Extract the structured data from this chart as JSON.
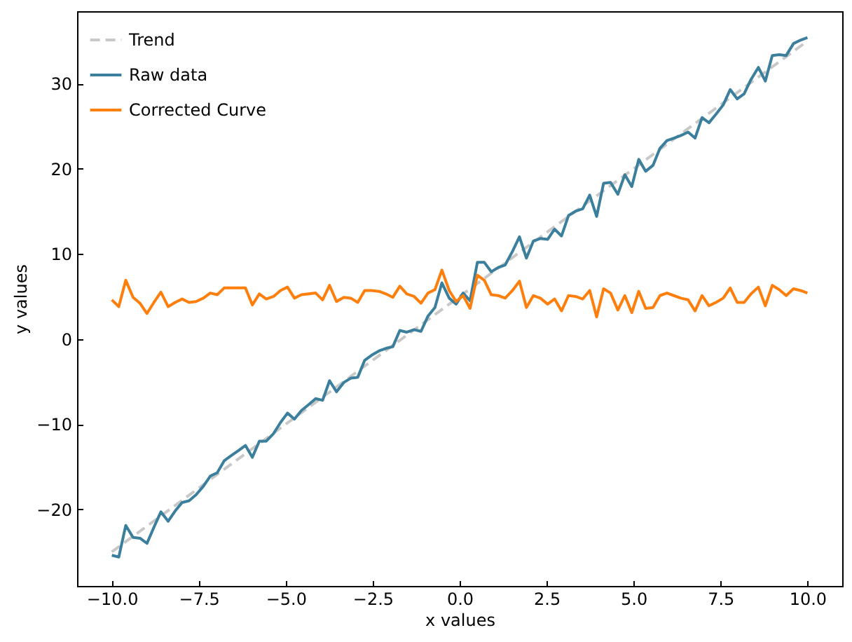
{
  "chart_data": {
    "type": "line",
    "xlabel": "x values",
    "ylabel": "y values",
    "xlim": [
      -11,
      11
    ],
    "ylim": [
      -29,
      38.5
    ],
    "xticks": [
      {
        "value": -10,
        "label": "−10.0"
      },
      {
        "value": -7.5,
        "label": "−7.5"
      },
      {
        "value": -5,
        "label": "−5.0"
      },
      {
        "value": -2.5,
        "label": "−2.5"
      },
      {
        "value": 0,
        "label": "0.0"
      },
      {
        "value": 2.5,
        "label": "2.5"
      },
      {
        "value": 5,
        "label": "5.0"
      },
      {
        "value": 7.5,
        "label": "7.5"
      },
      {
        "value": 10,
        "label": "10.0"
      }
    ],
    "yticks": [
      {
        "value": -20,
        "label": "−20"
      },
      {
        "value": -10,
        "label": "−10"
      },
      0,
      10,
      20,
      30
    ],
    "grid": false,
    "legend": "top left",
    "x": [
      -10,
      -9.8,
      -9.6,
      -9.39,
      -9.19,
      -8.99,
      -8.79,
      -8.59,
      -8.38,
      -8.18,
      -7.98,
      -7.78,
      -7.58,
      -7.37,
      -7.17,
      -6.97,
      -6.77,
      -6.57,
      -6.36,
      -6.16,
      -5.96,
      -5.76,
      -5.56,
      -5.35,
      -5.15,
      -4.95,
      -4.75,
      -4.55,
      -4.34,
      -4.14,
      -3.94,
      -3.74,
      -3.54,
      -3.33,
      -3.13,
      -2.93,
      -2.73,
      -2.53,
      -2.32,
      -2.12,
      -1.92,
      -1.72,
      -1.52,
      -1.31,
      -1.11,
      -0.91,
      -0.71,
      -0.51,
      -0.3,
      -0.1,
      0.1,
      0.3,
      0.51,
      0.71,
      0.91,
      1.11,
      1.31,
      1.52,
      1.72,
      1.92,
      2.12,
      2.32,
      2.53,
      2.73,
      2.93,
      3.13,
      3.33,
      3.54,
      3.74,
      3.94,
      4.14,
      4.34,
      4.55,
      4.75,
      4.95,
      5.15,
      5.35,
      5.56,
      5.76,
      5.96,
      6.16,
      6.36,
      6.57,
      6.77,
      6.97,
      7.17,
      7.37,
      7.58,
      7.78,
      7.98,
      8.18,
      8.38,
      8.59,
      8.79,
      8.99,
      9.19,
      9.39,
      9.6,
      9.8,
      10
    ],
    "series": [
      {
        "name": "Trend",
        "color": "#c8c8c8",
        "line_style": "dashed",
        "x": [
          -10,
          10
        ],
        "values": [
          -25,
          35
        ]
      },
      {
        "name": "Raw data",
        "color": "#3b7f9d",
        "line_style": "solid",
        "values": [
          -25.4,
          -25.6,
          -21.9,
          -23.3,
          -23.4,
          -24.0,
          -22.1,
          -20.3,
          -21.4,
          -20.2,
          -19.2,
          -19.0,
          -18.3,
          -17.3,
          -16.1,
          -15.7,
          -14.3,
          -13.7,
          -13.1,
          -12.5,
          -13.9,
          -12.0,
          -12.0,
          -11.1,
          -9.8,
          -8.7,
          -9.4,
          -8.4,
          -7.7,
          -7.0,
          -7.2,
          -4.9,
          -6.2,
          -5.1,
          -4.6,
          -4.5,
          -2.5,
          -1.9,
          -1.4,
          -1.1,
          -0.9,
          1.0,
          0.8,
          1.1,
          0.9,
          2.7,
          3.7,
          6.6,
          4.8,
          4.1,
          5.4,
          4.5,
          9.0,
          9.0,
          7.9,
          8.4,
          8.7,
          10.3,
          12.0,
          9.5,
          11.5,
          11.8,
          11.7,
          12.9,
          12.1,
          14.5,
          15.0,
          15.3,
          16.9,
          14.4,
          18.3,
          18.4,
          17.0,
          19.3,
          17.9,
          21.1,
          19.7,
          20.4,
          22.4,
          23.3,
          23.6,
          23.9,
          24.3,
          23.6,
          26.0,
          25.4,
          26.4,
          27.5,
          29.3,
          28.2,
          28.8,
          30.5,
          31.9,
          30.3,
          33.3,
          33.4,
          33.3,
          34.7,
          35.1,
          35.4
        ]
      },
      {
        "name": "Corrected Curve",
        "color": "#ff7f0e",
        "line_style": "solid",
        "values": [
          4.6,
          3.8,
          6.9,
          4.9,
          4.2,
          3.0,
          4.3,
          5.5,
          3.8,
          4.3,
          4.7,
          4.3,
          4.4,
          4.8,
          5.4,
          5.2,
          6.0,
          6.0,
          6.0,
          6.0,
          4.0,
          5.3,
          4.7,
          5.0,
          5.7,
          6.1,
          4.8,
          5.2,
          5.3,
          5.4,
          4.6,
          6.3,
          4.4,
          4.9,
          4.8,
          4.3,
          5.7,
          5.7,
          5.6,
          5.3,
          4.9,
          6.2,
          5.3,
          5.0,
          4.2,
          5.4,
          5.8,
          8.1,
          5.7,
          4.4,
          5.1,
          3.6,
          7.5,
          6.9,
          5.2,
          5.1,
          4.8,
          5.7,
          6.8,
          3.7,
          5.1,
          4.8,
          4.1,
          4.7,
          3.3,
          5.1,
          5.0,
          4.7,
          5.7,
          2.6,
          5.9,
          5.4,
          3.4,
          5.1,
          3.1,
          5.6,
          3.6,
          3.7,
          5.1,
          5.4,
          5.1,
          4.8,
          4.6,
          3.3,
          5.1,
          3.9,
          4.3,
          4.8,
          6.0,
          4.3,
          4.3,
          5.3,
          6.1,
          3.9,
          6.3,
          5.8,
          5.1,
          5.9,
          5.7,
          5.4
        ]
      }
    ]
  }
}
